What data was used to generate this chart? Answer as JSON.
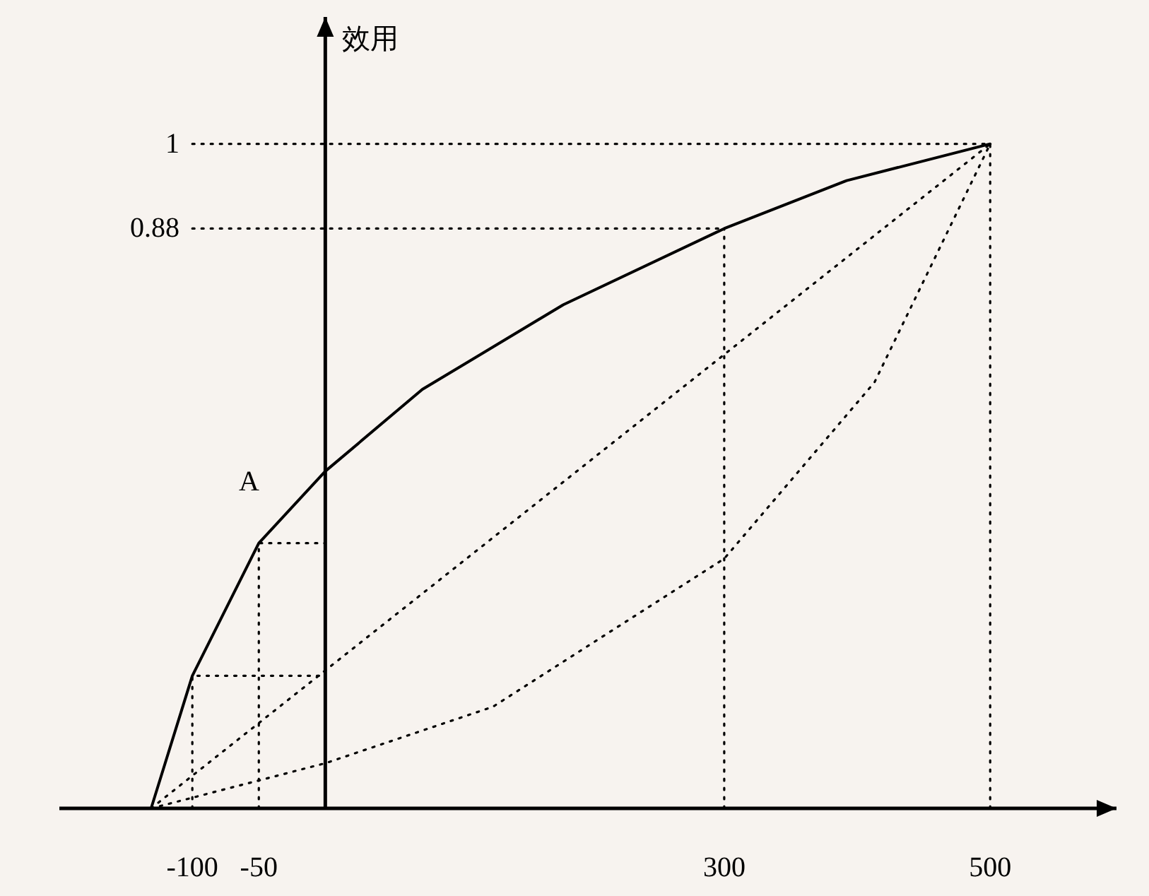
{
  "chart_data": {
    "type": "line",
    "ylabel": "效用",
    "xlim": [
      -200,
      595
    ],
    "ylim": [
      0.058,
      1.18
    ],
    "xticks": [
      -100,
      -50,
      300,
      500
    ],
    "yticks": [
      1,
      0.88
    ],
    "grid": false,
    "marker": "none",
    "annotations": [
      "A"
    ],
    "series": [
      {
        "color": "#000000",
        "line_style": "solid",
        "x": [
          -131,
          -100,
          -50,
          0,
          73,
          179,
          300,
          392,
          500
        ],
        "values": [
          0.058,
          0.246,
          0.434,
          0.536,
          0.652,
          0.772,
          0.88,
          0.948,
          1
        ]
      },
      {
        "color": "#000000",
        "line_style": "dotted",
        "x": [
          -131,
          500
        ],
        "values": [
          0.058,
          1
        ]
      },
      {
        "color": "#000000",
        "line_style": "dotted",
        "x": [
          -131,
          0,
          126,
          300,
          413,
          500
        ],
        "values": [
          0.058,
          0.122,
          0.202,
          0.412,
          0.662,
          1
        ]
      },
      {
        "color": "#000000",
        "line_style": "dotted",
        "x": [
          -100,
          500
        ],
        "values": [
          1,
          1
        ]
      },
      {
        "color": "#000000",
        "line_style": "dotted",
        "x": [
          -100,
          300
        ],
        "values": [
          0.88,
          0.88
        ]
      },
      {
        "color": "#000000",
        "line_style": "dotted",
        "x": [
          300,
          300
        ],
        "values": [
          0.058,
          0.88
        ]
      },
      {
        "color": "#000000",
        "line_style": "dotted",
        "x": [
          500,
          500
        ],
        "values": [
          0.058,
          1
        ]
      },
      {
        "color": "#000000",
        "line_style": "dotted",
        "x": [
          -100,
          -100,
          0
        ],
        "values": [
          0.058,
          0.246,
          0.246
        ]
      },
      {
        "color": "#000000",
        "line_style": "dotted",
        "x": [
          -50,
          -50,
          0
        ],
        "values": [
          0.058,
          0.434,
          0.434
        ]
      }
    ]
  }
}
